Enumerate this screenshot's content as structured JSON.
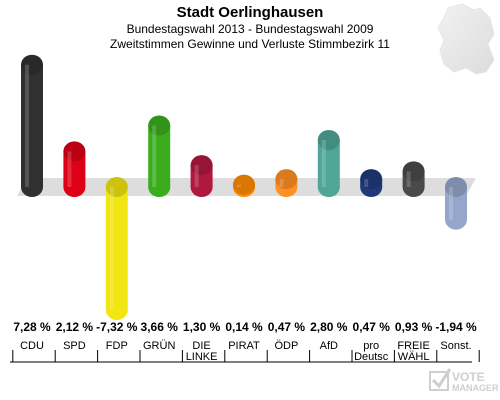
{
  "header": {
    "title": "Stadt Oerlinghausen",
    "subtitle": "Bundestagswahl 2013 - Bundestagswahl 2009",
    "description": "Zweitstimmen Gewinne und Verluste Stimmbezirk 11"
  },
  "watermark": {
    "line1": "VOTE",
    "line2": "MANAGER"
  },
  "chart_data": {
    "type": "bar",
    "title": "Stadt Oerlinghausen",
    "categories": [
      "CDU",
      "SPD",
      "FDP",
      "GRÜNE",
      "DIE LINKE",
      "PIRATEN",
      "ÖDP",
      "AfD",
      "pro Deutschland",
      "FREIE WÄHLER",
      "Sonst."
    ],
    "category_labels": [
      [
        "CDU"
      ],
      [
        "SPD"
      ],
      [
        "FDP"
      ],
      [
        "GRÜN"
      ],
      [
        "DIE",
        "LINKE"
      ],
      [
        "PIRAT"
      ],
      [
        "ÖDP"
      ],
      [
        "AfD"
      ],
      [
        "pro",
        "Deutsc"
      ],
      [
        "FREIE",
        "WÄHL"
      ],
      [
        "Sonst."
      ]
    ],
    "value_labels": [
      "7,28 %",
      "2,12 %",
      "-7,32 %",
      "3,66 %",
      "1,30 %",
      "0,14 %",
      "0,47 %",
      "2,80 %",
      "0,47 %",
      "0,93 %",
      "-1,94 %"
    ],
    "values": [
      7.28,
      2.12,
      -7.32,
      3.66,
      1.3,
      0.14,
      0.47,
      2.8,
      0.47,
      0.93,
      -1.94
    ],
    "colors": [
      "#303030",
      "#dd0016",
      "#f1e512",
      "#3aad1c",
      "#b0183e",
      "#ff8c00",
      "#ff9022",
      "#4fa696",
      "#1f3a7c",
      "#4a4a4a",
      "#95a6cc"
    ],
    "grid": false,
    "legend": "none"
  }
}
